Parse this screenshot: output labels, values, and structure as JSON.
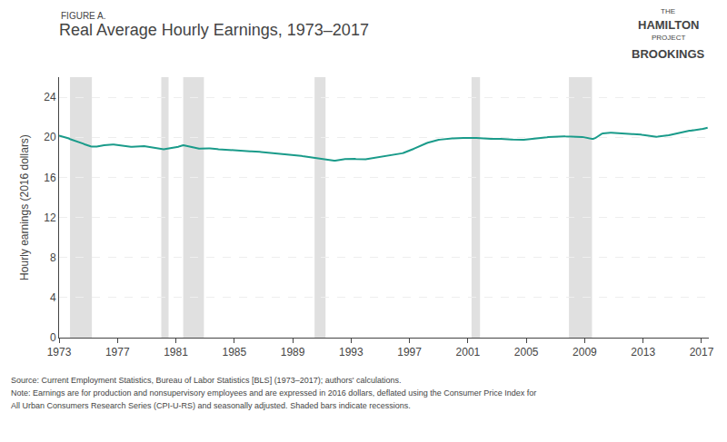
{
  "chart_data": {
    "type": "line",
    "title": "Real Average Hourly Earnings, 1973–2017",
    "figure_label": "FIGURE A.",
    "ylabel": "Hourly earnings (2016 dollars)",
    "notes": [
      "Source: Current Employment Statistics, Bureau of Labor Statistics [BLS] (1973–2017); authors' calculations.",
      "Note: Earnings are for production and nonsupervisory employees and are expressed in 2016 dollars, deflated using the Consumer Price Index for",
      "All Urban Consumers Research Series (CPI-U-RS) and seasonally adjusted. Shaded bars indicate recessions."
    ],
    "logo": [
      "THE",
      "HAMILTON",
      "PROJECT",
      "BROOKINGS"
    ],
    "ylim": [
      0,
      26
    ],
    "yticks": [
      0,
      4,
      8,
      12,
      16,
      20,
      24
    ],
    "xlim": [
      1973,
      2017.5
    ],
    "xticks": [
      1973,
      1977,
      1981,
      1985,
      1989,
      1993,
      1997,
      2001,
      2005,
      2009,
      2013,
      2017
    ],
    "grid": true,
    "color": "#1a9b8a",
    "recessions": {
      "color": "#e0e0e0",
      "spans": [
        [
          1973.75,
          1975.25
        ],
        [
          1980.0,
          1980.5
        ],
        [
          1981.5,
          1982.92
        ],
        [
          1990.5,
          1991.25
        ],
        [
          2001.25,
          2001.83
        ],
        [
          2007.92,
          2009.5
        ]
      ]
    },
    "x": [
      1973.0,
      1973.083,
      1973.167,
      1973.25,
      1973.333,
      1973.417,
      1973.5,
      1973.583,
      1973.667,
      1973.75,
      1973.833,
      1973.917,
      1974.0,
      1974.083,
      1974.167,
      1974.25,
      1974.333,
      1974.417,
      1974.5,
      1974.583,
      1974.667,
      1974.75,
      1974.833,
      1974.917,
      1975.0,
      1975.083,
      1975.167,
      1975.25,
      1975.333,
      1975.417,
      1975.5,
      1975.583,
      1975.667,
      1975.75,
      1975.833,
      1975.917,
      1976.0,
      1976.083,
      1976.167,
      1976.25,
      1976.333,
      1976.417,
      1976.5,
      1976.583,
      1976.667,
      1976.75,
      1976.833,
      1976.917,
      1977.0,
      1977.083,
      1977.167,
      1977.25,
      1977.333,
      1977.417,
      1977.5,
      1977.583,
      1977.667,
      1977.75,
      1977.833,
      1977.917,
      1978.0,
      1978.083,
      1978.167,
      1978.25,
      1978.333,
      1978.417,
      1978.5,
      1978.583,
      1978.667,
      1978.75,
      1978.833,
      1978.917,
      1979.0,
      1979.083,
      1979.167,
      1979.25,
      1979.333,
      1979.417,
      1979.5,
      1979.583,
      1979.667,
      1979.75,
      1979.833,
      1979.917,
      1980.0,
      1980.083,
      1980.167,
      1980.25,
      1980.333,
      1980.417,
      1980.5,
      1980.583,
      1980.667,
      1980.75,
      1980.833,
      1980.917,
      1981.0,
      1981.083,
      1981.167,
      1981.25,
      1981.333,
      1981.417,
      1981.5,
      1981.583,
      1981.667,
      1981.75,
      1981.833,
      1981.917,
      1982.0,
      1982.083,
      1982.167,
      1982.25,
      1982.333,
      1982.417,
      1982.5,
      1982.583,
      1982.667,
      1982.75,
      1982.833,
      1982.917,
      1983.0,
      1983.083,
      1983.167,
      1983.25,
      1983.333,
      1983.417,
      1983.5,
      1983.583,
      1983.667,
      1983.75,
      1983.833,
      1983.917,
      1984.0,
      1984.083,
      1984.167,
      1984.25,
      1984.333,
      1984.417,
      1984.5,
      1984.583,
      1984.667,
      1984.75,
      1984.833,
      1984.917,
      1985.0,
      1985.083,
      1985.167,
      1985.25,
      1985.333,
      1985.417,
      1985.5,
      1985.583,
      1985.667,
      1985.75,
      1985.833,
      1985.917,
      1986.0,
      1986.083,
      1986.167,
      1986.25,
      1986.333,
      1986.417,
      1986.5,
      1986.583,
      1986.667,
      1986.75,
      1986.833,
      1986.917,
      1987.0,
      1987.083,
      1987.167,
      1987.25,
      1987.333,
      1987.417,
      1987.5,
      1987.583,
      1987.667,
      1987.75,
      1987.833,
      1987.917,
      1988.0,
      1988.083,
      1988.167,
      1988.25,
      1988.333,
      1988.417,
      1988.5,
      1988.583,
      1988.667,
      1988.75,
      1988.833,
      1988.917,
      1989.0,
      1989.083,
      1989.167,
      1989.25,
      1989.333,
      1989.417,
      1989.5,
      1989.583,
      1989.667,
      1989.75,
      1989.833,
      1989.917,
      1990.0,
      1990.083,
      1990.167,
      1990.25,
      1990.333,
      1990.417,
      1990.5,
      1990.583,
      1990.667,
      1990.75,
      1990.833,
      1990.917,
      1991.0,
      1991.083,
      1991.167,
      1991.25,
      1991.333,
      1991.417,
      1991.5,
      1991.583,
      1991.667,
      1991.75,
      1991.833,
      1991.917,
      1992.0,
      1992.083,
      1992.167,
      1992.25,
      1992.333,
      1992.417,
      1992.5,
      1992.583,
      1992.667,
      1992.75,
      1992.833,
      1992.917,
      1993.0,
      1993.083,
      1993.167,
      1993.25,
      1993.333,
      1993.417,
      1993.5,
      1993.583,
      1993.667,
      1993.75,
      1993.833,
      1993.917,
      1994.0,
      1994.083,
      1994.167,
      1994.25,
      1994.333,
      1994.417,
      1994.5,
      1994.583,
      1994.667,
      1994.75,
      1994.833,
      1994.917,
      1995.0,
      1995.083,
      1995.167,
      1995.25,
      1995.333,
      1995.417,
      1995.5,
      1995.583,
      1995.667,
      1995.75,
      1995.833,
      1995.917,
      1996.0,
      1996.083,
      1996.167,
      1996.25,
      1996.333,
      1996.417,
      1996.5,
      1996.583,
      1996.667,
      1996.75,
      1996.833,
      1996.917,
      1997.0,
      1997.083,
      1997.167,
      1997.25,
      1997.333,
      1997.417,
      1997.5,
      1997.583,
      1997.667,
      1997.75,
      1997.833,
      1997.917,
      1998.0,
      1998.083,
      1998.167,
      1998.25,
      1998.333,
      1998.417,
      1998.5,
      1998.583,
      1998.667,
      1998.75,
      1998.833,
      1998.917,
      1999.0,
      1999.083,
      1999.167,
      1999.25,
      1999.333,
      1999.417,
      1999.5,
      1999.583,
      1999.667,
      1999.75,
      1999.833,
      1999.917,
      2000.0,
      2000.083,
      2000.167,
      2000.25,
      2000.333,
      2000.417,
      2000.5,
      2000.583,
      2000.667,
      2000.75,
      2000.833,
      2000.917,
      2001.0,
      2001.083,
      2001.167,
      2001.25,
      2001.333,
      2001.417,
      2001.5,
      2001.583,
      2001.667,
      2001.75,
      2001.833,
      2001.917,
      2002.0,
      2002.083,
      2002.167,
      2002.25,
      2002.333,
      2002.417,
      2002.5,
      2002.583,
      2002.667,
      2002.75,
      2002.833,
      2002.917,
      2003.0,
      2003.083,
      2003.167,
      2003.25,
      2003.333,
      2003.417,
      2003.5,
      2003.583,
      2003.667,
      2003.75,
      2003.833,
      2003.917,
      2004.0,
      2004.083,
      2004.167,
      2004.25,
      2004.333,
      2004.417,
      2004.5,
      2004.583,
      2004.667,
      2004.75,
      2004.833,
      2004.917,
      2005.0,
      2005.083,
      2005.167,
      2005.25,
      2005.333,
      2005.417,
      2005.5,
      2005.583,
      2005.667,
      2005.75,
      2005.833,
      2005.917,
      2006.0,
      2006.083,
      2006.167,
      2006.25,
      2006.333,
      2006.417,
      2006.5,
      2006.583,
      2006.667,
      2006.75,
      2006.833,
      2006.917,
      2007.0,
      2007.083,
      2007.167,
      2007.25,
      2007.333,
      2007.417,
      2007.5,
      2007.583,
      2007.667,
      2007.75,
      2007.833,
      2007.917,
      2008.0,
      2008.083,
      2008.167,
      2008.25,
      2008.333,
      2008.417,
      2008.5,
      2008.583,
      2008.667,
      2008.75,
      2008.833,
      2008.917,
      2009.0,
      2009.083,
      2009.167,
      2009.25,
      2009.333,
      2009.417,
      2009.5,
      2009.583,
      2009.667,
      2009.75,
      2009.833,
      2009.917,
      2010.0,
      2010.083,
      2010.167,
      2010.25,
      2010.333,
      2010.417,
      2010.5,
      2010.583,
      2010.667,
      2010.75,
      2010.833,
      2010.917,
      2011.0,
      2011.083,
      2011.167,
      2011.25,
      2011.333,
      2011.417,
      2011.5,
      2011.583,
      2011.667,
      2011.75,
      2011.833,
      2011.917,
      2012.0,
      2012.083,
      2012.167,
      2012.25,
      2012.333,
      2012.417,
      2012.5,
      2012.583,
      2012.667,
      2012.75,
      2012.833,
      2012.917,
      2013.0,
      2013.083,
      2013.167,
      2013.25,
      2013.333,
      2013.417,
      2013.5,
      2013.583,
      2013.667,
      2013.75,
      2013.833,
      2013.917,
      2014.0,
      2014.083,
      2014.167,
      2014.25,
      2014.333,
      2014.417,
      2014.5,
      2014.583,
      2014.667,
      2014.75,
      2014.833,
      2014.917,
      2015.0,
      2015.083,
      2015.167,
      2015.25,
      2015.333,
      2015.417,
      2015.5,
      2015.583,
      2015.667,
      2015.75,
      2015.833,
      2015.917,
      2016.0,
      2016.083,
      2016.167,
      2016.25,
      2016.333,
      2016.417,
      2016.5,
      2016.583,
      2016.667,
      2016.75,
      2016.833,
      2016.917,
      2017.0,
      2017.083,
      2017.167,
      2017.25,
      2017.333,
      2017.417
    ],
    "values": [
      20.15,
      20.12,
      20.1,
      20.08,
      20.05,
      20.02,
      19.98,
      19.95,
      19.88,
      19.82,
      19.78,
      19.75,
      19.72,
      19.7,
      19.65,
      19.6,
      19.55,
      19.5,
      19.45,
      19.4,
      19.35,
      19.3,
      19.25,
      19.2,
      19.18,
      19.15,
      19.1,
      19.08,
      19.05,
      19.05,
      19.06,
      19.07,
      19.08,
      19.1,
      19.12,
      19.15,
      19.18,
      19.2,
      19.22,
      19.24,
      19.25,
      19.27,
      19.28,
      19.28,
      19.28,
      19.27,
      19.25,
      19.23,
      19.2,
      19.17,
      19.15,
      19.13,
      19.12,
      19.12,
      19.1,
      19.08,
      19.07,
      19.06,
      19.05,
      19.04,
      19.05,
      19.06,
      19.07,
      19.08,
      19.1,
      19.12,
      19.13,
      19.14,
      19.15,
      19.14,
      19.12,
      19.1,
      19.08,
      19.06,
      19.04,
      19.02,
      19.0,
      18.98,
      18.95,
      18.92,
      18.89,
      18.87,
      18.85,
      18.83,
      18.82,
      18.8,
      18.8,
      18.82,
      18.84,
      18.86,
      18.87,
      18.88,
      18.9,
      18.92,
      18.93,
      18.95,
      18.97,
      19.0,
      19.05,
      19.1,
      19.15,
      19.18,
      19.2,
      19.18,
      19.15,
      19.12,
      19.08,
      19.05,
      19.02,
      18.98,
      18.95,
      18.92,
      18.9,
      18.88,
      18.87,
      18.87,
      18.87,
      18.88,
      18.88,
      18.88,
      18.88,
      18.88,
      18.88,
      18.88,
      18.88,
      18.88,
      18.88,
      18.87,
      18.85,
      18.83,
      18.82,
      18.8,
      18.79,
      18.78,
      18.77,
      18.76,
      18.75,
      18.74,
      18.73,
      18.73,
      18.73,
      18.73,
      18.72,
      18.72,
      18.71,
      18.7,
      18.69,
      18.68,
      18.67,
      18.66,
      18.65,
      18.64,
      18.63,
      18.62,
      18.61,
      18.6,
      18.6,
      18.6,
      18.6,
      18.6,
      18.59,
      18.58,
      18.57,
      18.56,
      18.55,
      18.54,
      18.53,
      18.52,
      18.51,
      18.5,
      18.49,
      18.48,
      18.47,
      18.46,
      18.45,
      18.44,
      18.43,
      18.42,
      18.41,
      18.4,
      18.38,
      18.36,
      18.35,
      18.34,
      18.33,
      18.32,
      18.31,
      18.3,
      18.29,
      18.28,
      18.28,
      18.27,
      18.27,
      18.27,
      18.26,
      18.24,
      18.22,
      18.2,
      18.17,
      18.15,
      18.12,
      18.1,
      18.08,
      18.06,
      18.04,
      18.02,
      18.0,
      17.98,
      17.96,
      17.94,
      17.92,
      17.9,
      17.88,
      17.86,
      17.84,
      17.82,
      17.8,
      17.78,
      17.76,
      17.74,
      17.72,
      17.7,
      17.68,
      17.67,
      17.66,
      17.66,
      17.66,
      17.67,
      17.68,
      17.7,
      17.72,
      17.74,
      17.76,
      17.78,
      17.8,
      17.82,
      17.83,
      17.84,
      17.85,
      17.85,
      17.85,
      17.84,
      17.84,
      17.84,
      17.83,
      17.82,
      17.81,
      17.81,
      17.8,
      17.8,
      17.8,
      17.8,
      17.8,
      17.82,
      17.84,
      17.86,
      17.88,
      17.9,
      17.92,
      17.94,
      17.96,
      17.98,
      18.0,
      18.02,
      18.03,
      18.04,
      18.05,
      18.06,
      18.08,
      18.09,
      18.1,
      18.12,
      18.14,
      18.16,
      18.18,
      18.2,
      18.22,
      18.25,
      18.28,
      18.31,
      18.34,
      18.37,
      18.4,
      18.44,
      18.48,
      18.52,
      18.56,
      18.6,
      18.65,
      18.7,
      18.76,
      18.82,
      18.88,
      18.94,
      19.0,
      19.06,
      19.12,
      19.18,
      19.23,
      19.28,
      19.33,
      19.37,
      19.41,
      19.45,
      19.49,
      19.53,
      19.57,
      19.61,
      19.65,
      19.68,
      19.7,
      19.72,
      19.74,
      19.76,
      19.78,
      19.8,
      19.82,
      19.83,
      19.84,
      19.85,
      19.86,
      19.87,
      19.88,
      19.89,
      19.89,
      19.9,
      19.9,
      19.91,
      19.92,
      19.93,
      19.93,
      19.94,
      19.94,
      19.94,
      19.94,
      19.93,
      19.92,
      19.91,
      19.9,
      19.9,
      19.91,
      19.92,
      19.92,
      19.92,
      19.91,
      19.9,
      19.88,
      19.86,
      19.85,
      19.85,
      19.85,
      19.85,
      19.85,
      19.84,
      19.84,
      19.84,
      19.84,
      19.83,
      19.83,
      19.83,
      19.83,
      19.83,
      19.83,
      19.84,
      19.84,
      19.84,
      19.84,
      19.83,
      19.82,
      19.81,
      19.8,
      19.79,
      19.78,
      19.77,
      19.76,
      19.75,
      19.74,
      19.74,
      19.74,
      19.74,
      19.74,
      19.74,
      19.75,
      19.76,
      19.77,
      19.78,
      19.79,
      19.8,
      19.82,
      19.84,
      19.86,
      19.88,
      19.9,
      19.91,
      19.92,
      19.92,
      19.93,
      19.94,
      19.96,
      19.97,
      19.98,
      20.0,
      20.02,
      20.03,
      20.04,
      20.05,
      20.06,
      20.07,
      20.08,
      20.09,
      20.09,
      20.1,
      20.1,
      20.1,
      20.1,
      20.09,
      20.08,
      20.08,
      20.07,
      20.06,
      20.05,
      20.05,
      20.05,
      20.05,
      20.05,
      20.05,
      20.05,
      20.05,
      20.05,
      20.04,
      20.03,
      20.01,
      19.98,
      19.95,
      19.92,
      19.9,
      19.88,
      19.86,
      19.85,
      19.85,
      19.88,
      19.94,
      20.02,
      20.12,
      20.2,
      20.28,
      20.35,
      20.38,
      20.4,
      20.42,
      20.44,
      20.46,
      20.46,
      20.46,
      20.45,
      20.44,
      20.43,
      20.41,
      20.4,
      20.38,
      20.37,
      20.36,
      20.35,
      20.34,
      20.33,
      20.32,
      20.32,
      20.32,
      20.32,
      20.32,
      20.32,
      20.32,
      20.32,
      20.32,
      20.32,
      20.32,
      20.3,
      20.28,
      20.26,
      20.24,
      20.22,
      20.2,
      20.18,
      20.16,
      20.14,
      20.12,
      20.1,
      20.08,
      20.07,
      20.06,
      20.05,
      20.05,
      20.06,
      20.07,
      20.08,
      20.09,
      20.1,
      20.12,
      20.14,
      20.16,
      20.18,
      20.2,
      20.23,
      20.26,
      20.29,
      20.32,
      20.35,
      20.38,
      20.41,
      20.44,
      20.47,
      20.5,
      20.53,
      20.56,
      20.58,
      20.6,
      20.62,
      20.64,
      20.65,
      20.66,
      20.67,
      20.68,
      20.69,
      20.7,
      20.72,
      20.74,
      20.76,
      20.78,
      20.8,
      20.83,
      20.86,
      20.89,
      20.92,
      20.95
    ]
  }
}
